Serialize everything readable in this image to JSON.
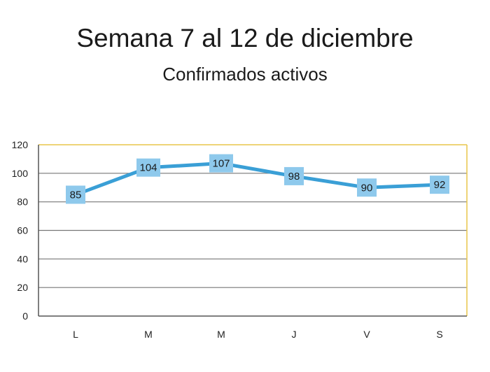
{
  "title": "Semana 7 al 12 de diciembre",
  "subtitle": "Confirmados activos",
  "colors": {
    "line": "#3a9fd6",
    "label_box": "#8ec9ec",
    "grid": "#777777",
    "frame": "#e8c64a",
    "axis": "#555555"
  },
  "chart_data": {
    "type": "line",
    "categories": [
      "L",
      "M",
      "M",
      "J",
      "V",
      "S"
    ],
    "values": [
      85,
      104,
      107,
      98,
      90,
      92
    ],
    "ylim": [
      0,
      120
    ],
    "yticks": [
      0,
      20,
      40,
      60,
      80,
      100,
      120
    ],
    "grid": true,
    "data_labels": true
  }
}
